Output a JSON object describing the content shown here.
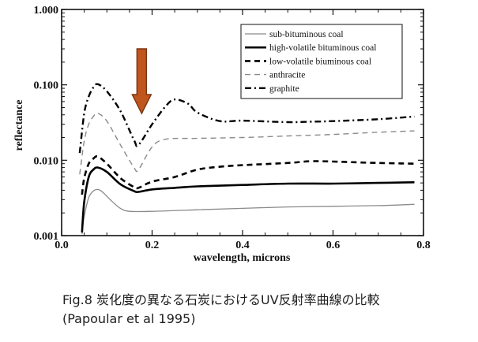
{
  "chart_data": {
    "type": "line",
    "xlabel": "wavelength, microns",
    "ylabel": "reflectance",
    "xlim": [
      0.0,
      0.8
    ],
    "ylim": [
      0.001,
      1.0
    ],
    "yscale": "log",
    "x_ticks": [
      "0.0",
      "0.2",
      "0.4",
      "0.6",
      "0.8"
    ],
    "y_ticks": [
      "0.001",
      "0.010",
      "0.100",
      "1.000"
    ],
    "legend_position": "top-right",
    "series": [
      {
        "name": "sub-bituminous coal",
        "style": "thin-solid-gray",
        "color": "#888888",
        "points": [
          [
            0.045,
            0.00105
          ],
          [
            0.05,
            0.0018
          ],
          [
            0.06,
            0.0032
          ],
          [
            0.07,
            0.0039
          ],
          [
            0.08,
            0.0041
          ],
          [
            0.09,
            0.0038
          ],
          [
            0.11,
            0.0029
          ],
          [
            0.13,
            0.0023
          ],
          [
            0.15,
            0.0021
          ],
          [
            0.2,
            0.0021
          ],
          [
            0.3,
            0.0022
          ],
          [
            0.4,
            0.0023
          ],
          [
            0.5,
            0.0024
          ],
          [
            0.6,
            0.00245
          ],
          [
            0.7,
            0.0025
          ],
          [
            0.78,
            0.0026
          ]
        ]
      },
      {
        "name": "high-volatile bituminous coal",
        "style": "thick-solid",
        "color": "#000000",
        "points": [
          [
            0.045,
            0.0011
          ],
          [
            0.05,
            0.0028
          ],
          [
            0.06,
            0.006
          ],
          [
            0.07,
            0.0075
          ],
          [
            0.08,
            0.008
          ],
          [
            0.1,
            0.007
          ],
          [
            0.13,
            0.0048
          ],
          [
            0.16,
            0.0039
          ],
          [
            0.17,
            0.0038
          ],
          [
            0.2,
            0.0041
          ],
          [
            0.25,
            0.0043
          ],
          [
            0.3,
            0.0045
          ],
          [
            0.4,
            0.0047
          ],
          [
            0.5,
            0.0049
          ],
          [
            0.6,
            0.0049
          ],
          [
            0.7,
            0.005
          ],
          [
            0.78,
            0.0051
          ]
        ]
      },
      {
        "name": "low-volatile biuminous coal",
        "style": "thick-dashed",
        "color": "#000000",
        "points": [
          [
            0.045,
            0.0035
          ],
          [
            0.05,
            0.0058
          ],
          [
            0.06,
            0.009
          ],
          [
            0.07,
            0.0105
          ],
          [
            0.08,
            0.0112
          ],
          [
            0.1,
            0.009
          ],
          [
            0.13,
            0.0058
          ],
          [
            0.16,
            0.0044
          ],
          [
            0.17,
            0.0043
          ],
          [
            0.2,
            0.0052
          ],
          [
            0.25,
            0.006
          ],
          [
            0.3,
            0.0075
          ],
          [
            0.35,
            0.0082
          ],
          [
            0.4,
            0.0086
          ],
          [
            0.5,
            0.0092
          ],
          [
            0.55,
            0.0097
          ],
          [
            0.6,
            0.0096
          ],
          [
            0.7,
            0.0092
          ],
          [
            0.78,
            0.009
          ]
        ]
      },
      {
        "name": "anthracite",
        "style": "thin-dashed-gray",
        "color": "#888888",
        "points": [
          [
            0.04,
            0.0065
          ],
          [
            0.05,
            0.018
          ],
          [
            0.06,
            0.03
          ],
          [
            0.07,
            0.038
          ],
          [
            0.08,
            0.042
          ],
          [
            0.1,
            0.033
          ],
          [
            0.13,
            0.016
          ],
          [
            0.16,
            0.008
          ],
          [
            0.17,
            0.0075
          ],
          [
            0.2,
            0.015
          ],
          [
            0.23,
            0.019
          ],
          [
            0.3,
            0.0195
          ],
          [
            0.4,
            0.02
          ],
          [
            0.5,
            0.021
          ],
          [
            0.6,
            0.022
          ],
          [
            0.7,
            0.0235
          ],
          [
            0.78,
            0.0245
          ]
        ]
      },
      {
        "name": "graphite",
        "style": "dash-dot",
        "color": "#000000",
        "points": [
          [
            0.04,
            0.0125
          ],
          [
            0.05,
            0.042
          ],
          [
            0.06,
            0.07
          ],
          [
            0.07,
            0.092
          ],
          [
            0.08,
            0.102
          ],
          [
            0.1,
            0.082
          ],
          [
            0.13,
            0.045
          ],
          [
            0.16,
            0.0185
          ],
          [
            0.17,
            0.016
          ],
          [
            0.2,
            0.03
          ],
          [
            0.23,
            0.052
          ],
          [
            0.25,
            0.064
          ],
          [
            0.28,
            0.056
          ],
          [
            0.3,
            0.043
          ],
          [
            0.35,
            0.033
          ],
          [
            0.4,
            0.0335
          ],
          [
            0.5,
            0.032
          ],
          [
            0.55,
            0.0325
          ],
          [
            0.6,
            0.033
          ],
          [
            0.7,
            0.035
          ],
          [
            0.78,
            0.038
          ]
        ]
      }
    ],
    "annotations": [
      {
        "type": "arrow",
        "color": "#C0561E",
        "points_to_x": 0.17,
        "description": "orange downward arrow marking dip"
      }
    ]
  },
  "caption": {
    "line1": "Fig.8 炭化度の異なる石炭におけるUV反射率曲線の比較",
    "line2": "(Papoular et al 1995)"
  }
}
